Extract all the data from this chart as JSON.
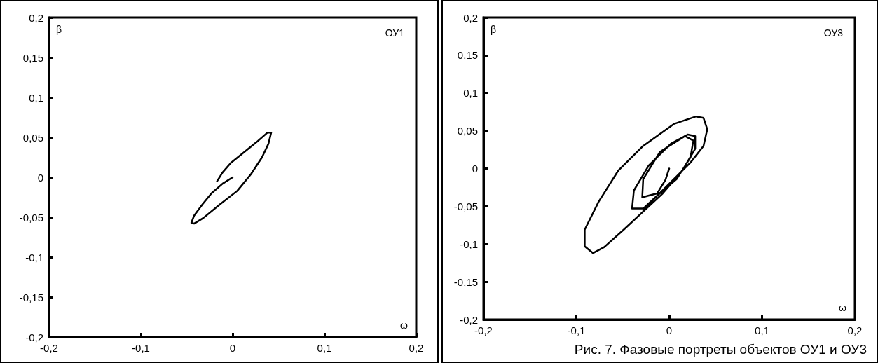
{
  "chart_data": [
    {
      "type": "line",
      "title": "ОУ1",
      "xlabel": "ω",
      "ylabel": "β",
      "grid": false,
      "marker": "none",
      "line_style": "solid",
      "xlim": [
        -0.2,
        0.2
      ],
      "ylim": [
        -0.2,
        0.2
      ],
      "xticks": [
        {
          "value": -0.2,
          "label": "-0,2"
        },
        {
          "value": -0.1,
          "label": "-0,1"
        },
        0,
        {
          "value": 0.1,
          "label": "0,1"
        },
        {
          "value": 0.2,
          "label": "0,2"
        }
      ],
      "yticks": [
        {
          "value": -0.2,
          "label": "-0,2"
        },
        {
          "value": -0.15,
          "label": "-0,15"
        },
        {
          "value": -0.1,
          "label": "-0,1"
        },
        {
          "value": -0.05,
          "label": "-0,05"
        },
        0,
        {
          "value": 0.05,
          "label": "0,05"
        },
        {
          "value": 0.1,
          "label": "0,1"
        },
        {
          "value": 0.15,
          "label": "0,15"
        },
        {
          "value": 0.2,
          "label": "0,2"
        }
      ],
      "series": [
        {
          "color": "#000000",
          "x": [
            0,
            -0.011,
            -0.023,
            -0.033,
            -0.042,
            -0.045,
            -0.042,
            -0.032,
            -0.014,
            0.005,
            0.02,
            0.032,
            0.039,
            0.042,
            0.038,
            0.026,
            0.011,
            -0.002,
            -0.011,
            -0.017
          ],
          "values": [
            0,
            -0.008,
            -0.02,
            -0.034,
            -0.048,
            -0.057,
            -0.058,
            -0.051,
            -0.034,
            -0.017,
            0.004,
            0.025,
            0.042,
            0.056,
            0.056,
            0.044,
            0.03,
            0.018,
            0.006,
            -0.005
          ]
        }
      ]
    },
    {
      "type": "line",
      "title": "ОУ3",
      "xlabel": "ω",
      "ylabel": "β",
      "grid": false,
      "marker": "none",
      "line_style": "solid",
      "annotations": [
        "Рис. 7. Фазовые портреты объектов ОУ1 и ОУ3"
      ],
      "xlim": [
        -0.2,
        0.2
      ],
      "ylim": [
        -0.2,
        0.2
      ],
      "xticks": [
        {
          "value": -0.2,
          "label": "-0,2"
        },
        {
          "value": -0.1,
          "label": "-0,1"
        },
        0,
        {
          "value": 0.1,
          "label": "0,1"
        },
        {
          "value": 0.2,
          "label": "0,2"
        }
      ],
      "yticks": [
        {
          "value": -0.2,
          "label": "-0,2"
        },
        {
          "value": -0.15,
          "label": "-0,15"
        },
        {
          "value": -0.1,
          "label": "-0,1"
        },
        {
          "value": -0.05,
          "label": "-0,05"
        },
        0,
        {
          "value": 0.05,
          "label": "0,05"
        },
        {
          "value": 0.1,
          "label": "0,1"
        },
        {
          "value": 0.15,
          "label": "0,15"
        },
        {
          "value": 0.2,
          "label": "0,2"
        }
      ],
      "series": [
        {
          "color": "#000000",
          "x": [
            0,
            -0.004,
            -0.013,
            -0.029,
            -0.028,
            -0.01,
            0.017,
            0.026,
            0.023,
            0.008,
            -0.013,
            -0.028,
            -0.04,
            -0.038,
            -0.022,
            0.002,
            0.02,
            0.028,
            0.028,
            0.014,
            -0.007,
            -0.028,
            -0.049,
            -0.07,
            -0.082,
            -0.091,
            -0.091,
            -0.076,
            -0.055,
            -0.028,
            0.005,
            0.029,
            0.037,
            0.041,
            0.037,
            0.023,
            0.005,
            -0.013,
            -0.028
          ],
          "values": [
            0,
            -0.015,
            -0.033,
            -0.038,
            -0.014,
            0.022,
            0.043,
            0.037,
            0.015,
            -0.014,
            -0.036,
            -0.053,
            -0.053,
            -0.029,
            0.004,
            0.033,
            0.045,
            0.043,
            0.026,
            -0.003,
            -0.033,
            -0.057,
            -0.081,
            -0.104,
            -0.112,
            -0.103,
            -0.081,
            -0.044,
            -0.003,
            0.03,
            0.059,
            0.069,
            0.067,
            0.052,
            0.03,
            0.008,
            -0.014,
            -0.036,
            -0.055
          ]
        }
      ]
    }
  ]
}
